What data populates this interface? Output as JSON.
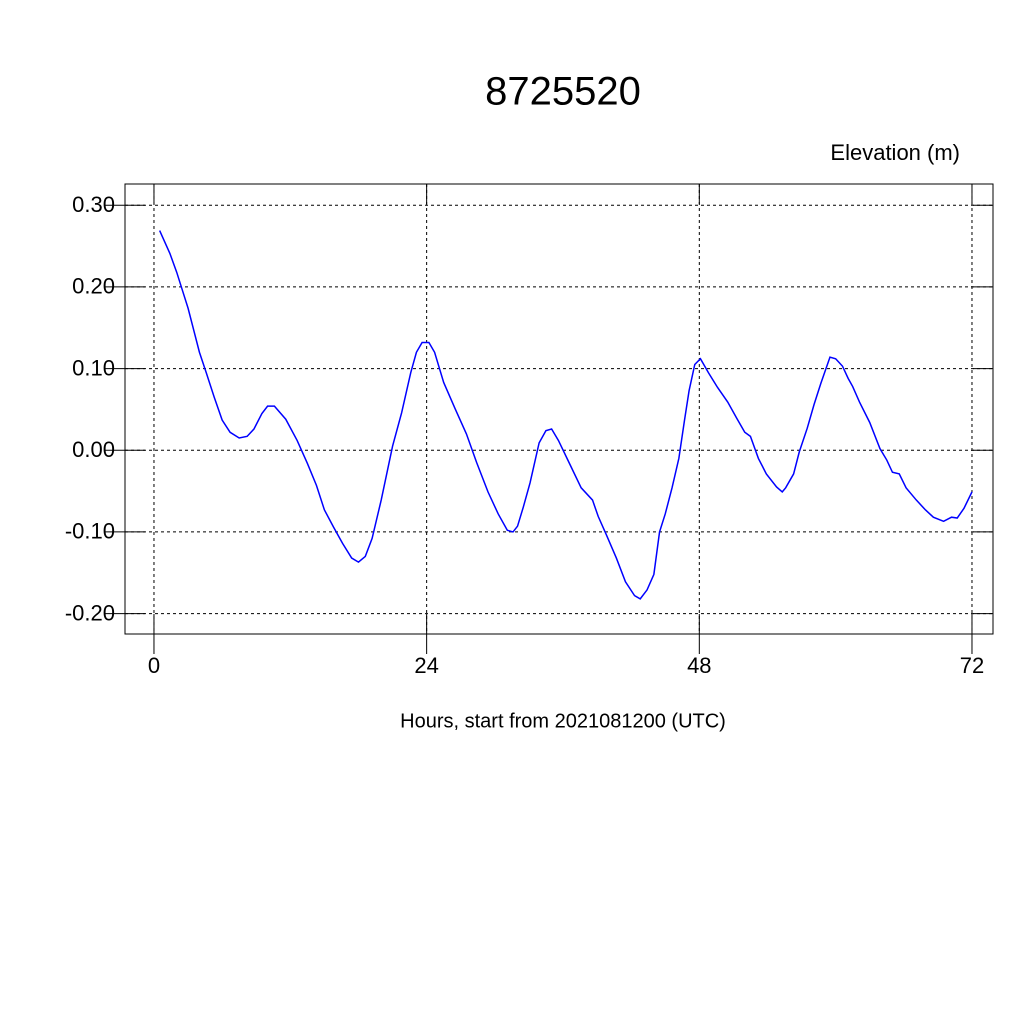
{
  "chart_data": {
    "type": "line",
    "title": "8725520",
    "ylabel": "Elevation (m)",
    "xlabel": "Hours, start from 2021081200 (UTC)",
    "color": "#0000ff",
    "grid": true,
    "xlim": [
      -2.55,
      73.85
    ],
    "ylim": [
      -0.225,
      0.326
    ],
    "xticks": [
      0,
      24,
      48,
      72
    ],
    "yticks": [
      {
        "value": 0.3,
        "label": "0.30"
      },
      {
        "value": 0.2,
        "label": "0.20"
      },
      {
        "value": 0.1,
        "label": "0.10"
      },
      {
        "value": 0,
        "label": "0.00"
      },
      {
        "value": -0.1,
        "label": "-0.10"
      },
      {
        "value": -0.2,
        "label": "-0.20"
      }
    ],
    "x": [
      0.5,
      1.4,
      2,
      2.5,
      3,
      3.5,
      4,
      4.6,
      5.3,
      6,
      6.7,
      7.5,
      8.2,
      8.8,
      9.5,
      10,
      10.6,
      11.6,
      12.6,
      13.5,
      14.3,
      15,
      15.8,
      16.6,
      17.4,
      18,
      18.6,
      19.2,
      20,
      21,
      21.8,
      22.6,
      23.1,
      23.6,
      24.2,
      24.7,
      25.5,
      26.5,
      27.5,
      28.4,
      29.4,
      30.3,
      31.1,
      31.6,
      32,
      32.5,
      33.1,
      33.9,
      34.5,
      35,
      35.6,
      36.6,
      37.6,
      38.6,
      39.1,
      39.8,
      40.7,
      41.5,
      42.3,
      42.8,
      43.4,
      44,
      44.5,
      45,
      45.6,
      46.2,
      46.7,
      47.1,
      47.6,
      48.1,
      48.8,
      49.6,
      50.5,
      51.3,
      52,
      52.5,
      53.2,
      53.9,
      54.8,
      55.3,
      55.6,
      56.3,
      56.8,
      57.5,
      58.1,
      58.7,
      59.5,
      60,
      60.6,
      61.1,
      61.5,
      62.1,
      63,
      63.9,
      64.5,
      65,
      65.6,
      66.2,
      67.1,
      67.9,
      68.6,
      69.5,
      70.2,
      70.7,
      71.3,
      72
    ],
    "values": [
      0.269,
      0.241,
      0.218,
      0.196,
      0.174,
      0.147,
      0.12,
      0.095,
      0.065,
      0.037,
      0.022,
      0.015,
      0.017,
      0.026,
      0.045,
      0.054,
      0.054,
      0.038,
      0.012,
      -0.016,
      -0.043,
      -0.073,
      -0.094,
      -0.114,
      -0.132,
      -0.137,
      -0.13,
      -0.108,
      -0.061,
      0.005,
      0.046,
      0.095,
      0.12,
      0.132,
      0.132,
      0.12,
      0.083,
      0.051,
      0.02,
      -0.015,
      -0.051,
      -0.078,
      -0.098,
      -0.1,
      -0.093,
      -0.07,
      -0.04,
      0.009,
      0.024,
      0.026,
      0.012,
      -0.017,
      -0.046,
      -0.061,
      -0.081,
      -0.103,
      -0.132,
      -0.161,
      -0.178,
      -0.182,
      -0.171,
      -0.152,
      -0.1,
      -0.078,
      -0.046,
      -0.01,
      0.037,
      0.073,
      0.105,
      0.112,
      0.095,
      0.077,
      0.059,
      0.039,
      0.022,
      0.017,
      -0.01,
      -0.029,
      -0.045,
      -0.051,
      -0.046,
      -0.029,
      -0.002,
      0.027,
      0.056,
      0.082,
      0.114,
      0.112,
      0.103,
      0.088,
      0.078,
      0.059,
      0.034,
      0.002,
      -0.012,
      -0.027,
      -0.029,
      -0.046,
      -0.061,
      -0.073,
      -0.082,
      -0.087,
      -0.082,
      -0.083,
      -0.071,
      -0.051
    ]
  }
}
